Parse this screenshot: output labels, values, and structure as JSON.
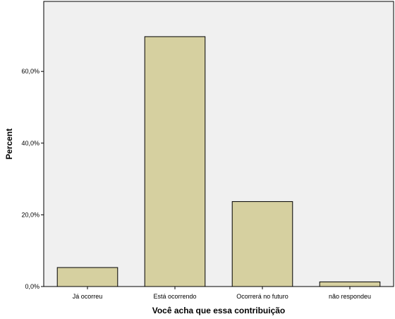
{
  "chart_data": {
    "type": "bar",
    "title": "",
    "xlabel": "Você acha que essa contribuição",
    "ylabel": "Percent",
    "categories": [
      "Já ocorreu",
      "Está ocorrendo",
      "Ocorrerá no futuro",
      "não respondeu"
    ],
    "values": [
      5.3,
      69.7,
      23.7,
      1.3
    ],
    "ylim": [
      0,
      75
    ],
    "yticks": [
      0,
      20,
      40,
      60
    ],
    "ytick_labels": [
      "0,0%",
      "20,0%",
      "40,0%",
      "60,0%"
    ],
    "grid": false,
    "legend": "none",
    "colors": {
      "plot_background": "#f0f0f0",
      "bar_fill": "#d6d0a0",
      "bar_stroke": "#000000",
      "axis": "#000000"
    }
  }
}
